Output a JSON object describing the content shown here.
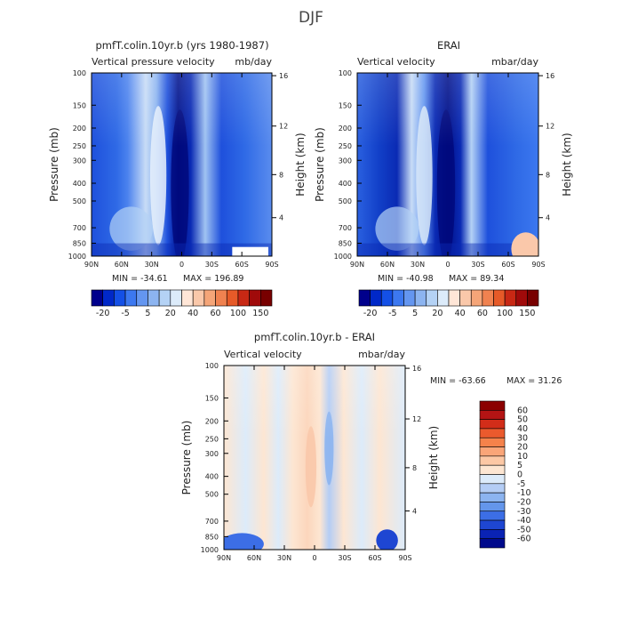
{
  "figure": {
    "title": "DJF"
  },
  "chart_data": [
    {
      "type": "heatmap",
      "title": "pmfT.colin.10yr.b (yrs 1980-1987)",
      "subtitle_left": "Vertical pressure velocity",
      "subtitle_right": "mb/day",
      "ylabel": "Pressure (mb)",
      "ylabel_right": "Height (km)",
      "x_ticks": [
        "90N",
        "60N",
        "30N",
        "0",
        "30S",
        "60S",
        "90S"
      ],
      "y_ticks": [
        "100",
        "150",
        "200",
        "250",
        "300",
        "400",
        "500",
        "700",
        "850",
        "1000"
      ],
      "y_right_ticks": [
        "16",
        "12",
        "8",
        "4"
      ],
      "min_label": "MIN = -34.61",
      "max_label": "MAX = 196.89",
      "colorbar_labels": [
        "-20",
        "-5",
        "5",
        "20",
        "40",
        "60",
        "100",
        "150"
      ],
      "palette": [
        "#00008c",
        "#0028c8",
        "#1450e6",
        "#3c78f0",
        "#6496f0",
        "#8cb4f0",
        "#b4d2f5",
        "#dcebfa",
        "#ffe6d7",
        "#fac8aa",
        "#f5a578",
        "#f08250",
        "#e65a28",
        "#c82814",
        "#a00a0a",
        "#780000"
      ]
    },
    {
      "type": "heatmap",
      "title": "ERAI",
      "subtitle_left": "Vertical velocity",
      "subtitle_right": "mbar/day",
      "ylabel": "Pressure (mb)",
      "ylabel_right": "Height (km)",
      "x_ticks": [
        "90N",
        "60N",
        "30N",
        "0",
        "30S",
        "60S",
        "90S"
      ],
      "y_ticks": [
        "100",
        "150",
        "200",
        "250",
        "300",
        "400",
        "500",
        "700",
        "850",
        "1000"
      ],
      "y_right_ticks": [
        "16",
        "12",
        "8",
        "4"
      ],
      "min_label": "MIN = -40.98",
      "max_label": "MAX = 89.34",
      "colorbar_labels": [
        "-20",
        "-5",
        "5",
        "20",
        "40",
        "60",
        "100",
        "150"
      ],
      "palette": [
        "#00008c",
        "#0028c8",
        "#1450e6",
        "#3c78f0",
        "#6496f0",
        "#8cb4f0",
        "#b4d2f5",
        "#dcebfa",
        "#ffe6d7",
        "#fac8aa",
        "#f5a578",
        "#f08250",
        "#e65a28",
        "#c82814",
        "#a00a0a",
        "#780000"
      ]
    },
    {
      "type": "heatmap",
      "title": "pmfT.colin.10yr.b - ERAI",
      "subtitle_left": "Vertical velocity",
      "subtitle_right": "mbar/day",
      "ylabel": "Pressure (mb)",
      "ylabel_right": "Height (km)",
      "x_ticks": [
        "90N",
        "60N",
        "30N",
        "0",
        "30S",
        "60S",
        "90S"
      ],
      "y_ticks": [
        "100",
        "150",
        "200",
        "250",
        "300",
        "400",
        "500",
        "700",
        "850",
        "1000"
      ],
      "y_right_ticks": [
        "16",
        "12",
        "8",
        "4"
      ],
      "min_label": "MIN = -63.66",
      "max_label": "MAX =  31.26",
      "colorbar_labels": [
        "60",
        "50",
        "40",
        "30",
        "20",
        "10",
        "5",
        "0",
        "-5",
        "-10",
        "-20",
        "-30",
        "-40",
        "-50",
        "-60"
      ],
      "palette": [
        "#8b0000",
        "#b41414",
        "#d22d19",
        "#eb5a2d",
        "#f5824b",
        "#faa578",
        "#fcc8a5",
        "#fde6d2",
        "#dcebfa",
        "#b4cdf5",
        "#8cb4f0",
        "#6496eb",
        "#3c6ee6",
        "#1e46d2",
        "#0a23b4",
        "#000a8c"
      ]
    }
  ]
}
